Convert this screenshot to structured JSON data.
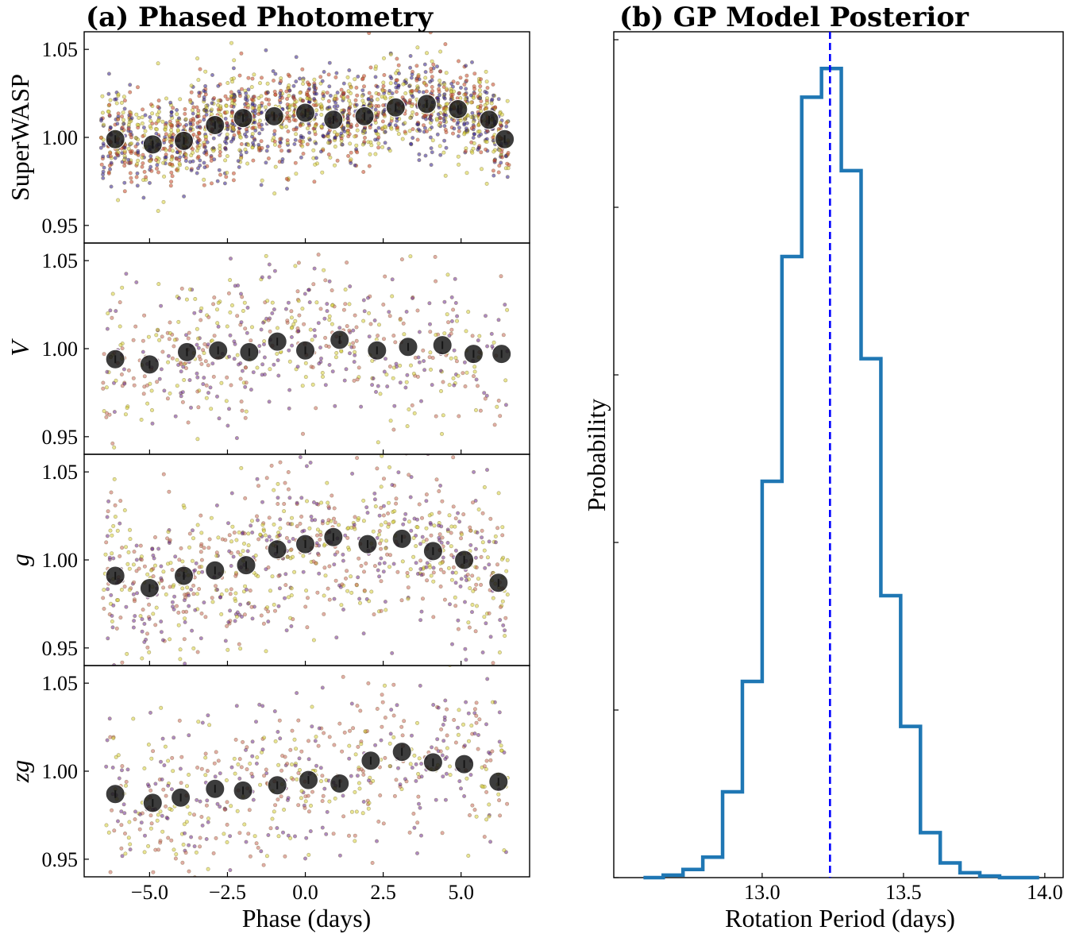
{
  "chart_data": [
    {
      "type": "scatter",
      "title": "(a) Phased Photometry",
      "xlabel": "Phase (days)",
      "xlim": [
        -7.1,
        7.2
      ],
      "x_ticks": [
        "−5.0",
        "−2.5",
        "0.0",
        "2.5",
        "5.0"
      ],
      "x_tick_values": [
        -5.0,
        -2.5,
        0.0,
        2.5,
        5.0
      ],
      "y_tick_values": [
        0.95,
        1.0,
        1.05
      ],
      "y_ticks": [
        "0.95",
        "1.00",
        "1.05"
      ],
      "panels": [
        {
          "ylabel": "SuperWASP",
          "ylabel_italic": false,
          "ylim": [
            0.94,
            1.06
          ],
          "scatter_colors": [
            "#2d1e8c",
            "#d6cf3a",
            "#c8462e"
          ],
          "scatter_density": "high",
          "binned_x": [
            -6.1,
            -4.9,
            -3.9,
            -2.9,
            -2.0,
            -1.0,
            0.0,
            0.9,
            1.9,
            2.9,
            3.9,
            4.9,
            5.9,
            6.4
          ],
          "binned_y": [
            0.999,
            0.996,
            0.998,
            1.007,
            1.011,
            1.012,
            1.014,
            1.01,
            1.012,
            1.017,
            1.019,
            1.016,
            1.01,
            0.999
          ]
        },
        {
          "ylabel": "V",
          "ylabel_italic": true,
          "ylim": [
            0.94,
            1.06
          ],
          "scatter_colors": [
            "#6a2b8e",
            "#d6cf3a",
            "#c86a5e"
          ],
          "scatter_density": "low",
          "binned_x": [
            -6.1,
            -5.0,
            -3.8,
            -2.8,
            -1.8,
            -0.9,
            0.0,
            1.1,
            2.3,
            3.3,
            4.4,
            5.4,
            6.3
          ],
          "binned_y": [
            0.994,
            0.991,
            0.998,
            0.999,
            0.998,
            1.004,
            0.999,
            1.005,
            0.999,
            1.001,
            1.002,
            0.997,
            0.997
          ]
        },
        {
          "ylabel": "g",
          "ylabel_italic": true,
          "ylim": [
            0.94,
            1.06
          ],
          "scatter_colors": [
            "#6a2b8e",
            "#d6cf3a",
            "#c86a5e"
          ],
          "scatter_density": "medium",
          "binned_x": [
            -6.1,
            -5.0,
            -3.9,
            -2.9,
            -1.9,
            -0.9,
            0.0,
            0.9,
            2.0,
            3.1,
            4.1,
            5.1,
            6.2
          ],
          "binned_y": [
            0.991,
            0.984,
            0.991,
            0.994,
            0.997,
            1.006,
            1.009,
            1.013,
            1.009,
            1.012,
            1.005,
            1.0,
            0.987
          ]
        },
        {
          "ylabel": "zg",
          "ylabel_italic": true,
          "ylim": [
            0.94,
            1.06
          ],
          "scatter_colors": [
            "#6a2b8e",
            "#d6cf3a",
            "#c86a5e"
          ],
          "scatter_density": "low",
          "binned_x": [
            -6.1,
            -4.9,
            -4.0,
            -2.9,
            -2.0,
            -0.9,
            0.1,
            1.1,
            2.1,
            3.1,
            4.1,
            5.1,
            6.2
          ],
          "binned_y": [
            0.987,
            0.982,
            0.985,
            0.99,
            0.989,
            0.992,
            0.995,
            0.993,
            1.006,
            1.011,
            1.005,
            1.004,
            0.994
          ]
        }
      ]
    },
    {
      "type": "histogram-step",
      "title": "(b) GP Model Posterior",
      "xlabel": "Rotation Period (days)",
      "ylabel": "Probability",
      "xlim": [
        12.475,
        14.065
      ],
      "x_tick_values": [
        13.0,
        13.5,
        14.0
      ],
      "x_ticks": [
        "13.0",
        "13.5",
        "14.0"
      ],
      "y_ticks_labeled": false,
      "y_tick_count": 5,
      "ylim": [
        0,
        1035
      ],
      "bin_edges": [
        12.58,
        12.65,
        12.72,
        12.79,
        12.86,
        12.93,
        13.0,
        13.07,
        13.14,
        13.21,
        13.28,
        13.35,
        13.42,
        13.49,
        13.56,
        13.63,
        13.7,
        13.77,
        13.84,
        13.91,
        13.98
      ],
      "counts": [
        0,
        3,
        10,
        25,
        105,
        240,
        485,
        760,
        955,
        990,
        865,
        635,
        345,
        185,
        55,
        18,
        6,
        2,
        0,
        0
      ],
      "line_color": "#1f77b4",
      "marker_line": {
        "x": 13.24,
        "color": "#0000ff",
        "style": "dashed"
      }
    }
  ]
}
